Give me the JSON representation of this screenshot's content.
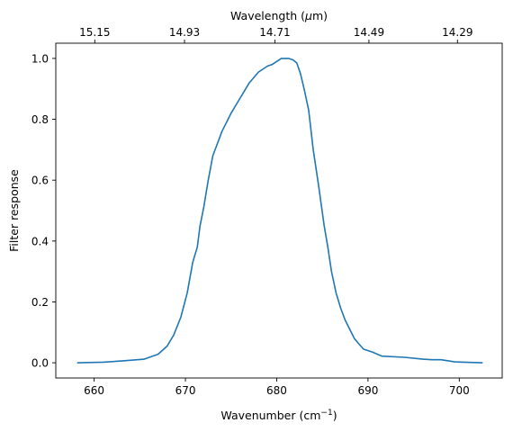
{
  "chart_data": {
    "type": "line",
    "title": "",
    "xlabel": "Wavenumber (cm",
    "xlabel_sup": "−1",
    "xlabel_end": ")",
    "ylabel": "Filter response",
    "top_xlabel": "Wavelength (",
    "top_xlabel_mu": "μ",
    "top_xlabel_end": "m)",
    "xlim": [
      655.8,
      704.7
    ],
    "ylim": [
      -0.05,
      1.05
    ],
    "xticks": [
      660,
      670,
      680,
      690,
      700
    ],
    "xtick_labels": [
      "660",
      "670",
      "680",
      "690",
      "700"
    ],
    "yticks": [
      0.0,
      0.2,
      0.4,
      0.6,
      0.8,
      1.0
    ],
    "ytick_labels": [
      "0.0",
      "0.2",
      "0.4",
      "0.6",
      "0.8",
      "1.0"
    ],
    "top_xticks": [
      660.07,
      669.9,
      679.8,
      690.1,
      699.8
    ],
    "top_xtick_labels": [
      "15.15",
      "14.93",
      "14.71",
      "14.49",
      "14.29"
    ],
    "grid": false,
    "line_color": "#1f77b4",
    "series": [
      {
        "x": [
          658.2,
          661.0,
          663.0,
          665.5,
          667.0,
          668.0,
          668.7,
          669.5,
          670.2,
          670.8,
          671.3,
          671.6,
          672.0,
          672.5,
          673.0,
          673.5,
          674.0,
          675.0,
          676.0,
          677.0,
          678.0,
          679.0,
          679.5,
          680.0,
          680.5,
          680.9,
          681.3,
          681.8,
          682.2,
          682.6,
          683.0,
          683.5,
          684.0,
          684.6,
          685.2,
          685.6,
          686.0,
          686.5,
          687.0,
          687.5,
          688.0,
          688.5,
          689.0,
          689.5,
          690.5,
          691.5,
          694.0,
          696.0,
          697.0,
          698.0,
          699.5,
          700.5,
          702.5
        ],
        "y": [
          0.0,
          0.002,
          0.006,
          0.012,
          0.028,
          0.055,
          0.09,
          0.15,
          0.23,
          0.33,
          0.38,
          0.45,
          0.51,
          0.6,
          0.68,
          0.72,
          0.76,
          0.82,
          0.87,
          0.92,
          0.955,
          0.975,
          0.98,
          0.99,
          1.0,
          1.0,
          1.0,
          0.995,
          0.985,
          0.95,
          0.9,
          0.83,
          0.7,
          0.58,
          0.45,
          0.38,
          0.3,
          0.23,
          0.18,
          0.14,
          0.11,
          0.08,
          0.062,
          0.045,
          0.035,
          0.022,
          0.018,
          0.012,
          0.01,
          0.01,
          0.003,
          0.002,
          0.0
        ]
      }
    ]
  }
}
